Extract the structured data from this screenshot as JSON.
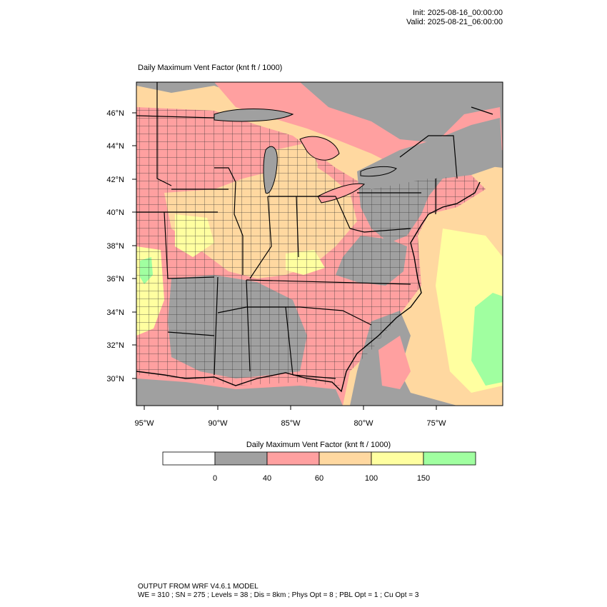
{
  "header": {
    "init": "Init: 2025-08-16_00:00:00",
    "valid": "Valid: 2025-08-21_06:00:00"
  },
  "map": {
    "title": "Daily Maximum Vent Factor   (knt ft / 1000)",
    "lat_labels": [
      "46°N",
      "44°N",
      "42°N",
      "40°N",
      "38°N",
      "36°N",
      "34°N",
      "32°N",
      "30°N"
    ],
    "lon_labels": [
      "95°W",
      "90°W",
      "85°W",
      "80°W",
      "75°W"
    ]
  },
  "colorbar": {
    "title": "Daily Maximum Vent Factor  (knt ft / 1000)",
    "bins": [
      {
        "color": "#ffffff"
      },
      {
        "color": "#a0a0a0"
      },
      {
        "color": "#ffa0a0"
      },
      {
        "color": "#ffd8a0"
      },
      {
        "color": "#ffffa0"
      },
      {
        "color": "#a0ffa0"
      }
    ],
    "tick_labels": [
      "0",
      "40",
      "60",
      "100",
      "150"
    ]
  },
  "footer": {
    "line1": "OUTPUT FROM WRF V4.6.1 MODEL",
    "line2": "WE = 310 ; SN = 275 ; Levels = 38 ; Dis = 8km ; Phys Opt = 8 ; PBL Opt = 1 ; Cu Opt = 3"
  }
}
